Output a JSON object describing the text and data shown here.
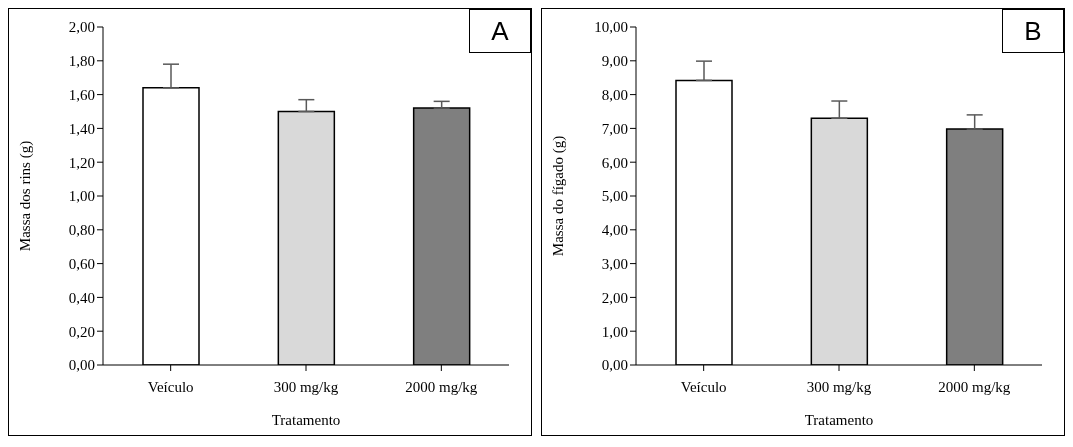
{
  "chart_data": [
    {
      "type": "bar",
      "title": "A",
      "xlabel": "Tratamento",
      "ylabel": "Massa dos rins (g)",
      "categories": [
        "Veículo",
        "300 mg/kg",
        "2000 mg/kg"
      ],
      "values": [
        1.64,
        1.5,
        1.52
      ],
      "errors": [
        [
          1.64,
          1.78
        ],
        [
          1.5,
          1.57
        ],
        [
          1.52,
          1.56
        ]
      ],
      "colors": [
        "#ffffff",
        "#d9d9d9",
        "#7f7f7f"
      ],
      "ylim": [
        0,
        2
      ],
      "yticks": [
        {
          "value": 0,
          "label": "0,00"
        },
        {
          "value": 0.2,
          "label": "0,20"
        },
        {
          "value": 0.4,
          "label": "0,40"
        },
        {
          "value": 0.6,
          "label": "0,60"
        },
        {
          "value": 0.8,
          "label": "0,80"
        },
        {
          "value": 1,
          "label": "1,00"
        },
        {
          "value": 1.2,
          "label": "1,20"
        },
        {
          "value": 1.4,
          "label": "1,40"
        },
        {
          "value": 1.6,
          "label": "1,60"
        },
        {
          "value": 1.8,
          "label": "1,80"
        },
        {
          "value": 2,
          "label": "2,00"
        }
      ]
    },
    {
      "type": "bar",
      "title": "B",
      "xlabel": "Tratamento",
      "ylabel": "Massa do fígado (g)",
      "categories": [
        "Veículo",
        "300 mg/kg",
        "2000 mg/kg"
      ],
      "values": [
        8.42,
        7.3,
        6.98
      ],
      "errors": [
        [
          8.42,
          8.99
        ],
        [
          7.3,
          7.81
        ],
        [
          6.98,
          7.4
        ]
      ],
      "colors": [
        "#ffffff",
        "#d9d9d9",
        "#7f7f7f"
      ],
      "ylim": [
        0,
        10
      ],
      "yticks": [
        {
          "value": 0,
          "label": "0,00"
        },
        {
          "value": 1,
          "label": "1,00"
        },
        {
          "value": 2,
          "label": "2,00"
        },
        {
          "value": 3,
          "label": "3,00"
        },
        {
          "value": 4,
          "label": "4,00"
        },
        {
          "value": 5,
          "label": "5,00"
        },
        {
          "value": 6,
          "label": "6,00"
        },
        {
          "value": 7,
          "label": "7,00"
        },
        {
          "value": 8,
          "label": "8,00"
        },
        {
          "value": 9,
          "label": "9,00"
        },
        {
          "value": 10,
          "label": "10,00"
        }
      ]
    }
  ]
}
